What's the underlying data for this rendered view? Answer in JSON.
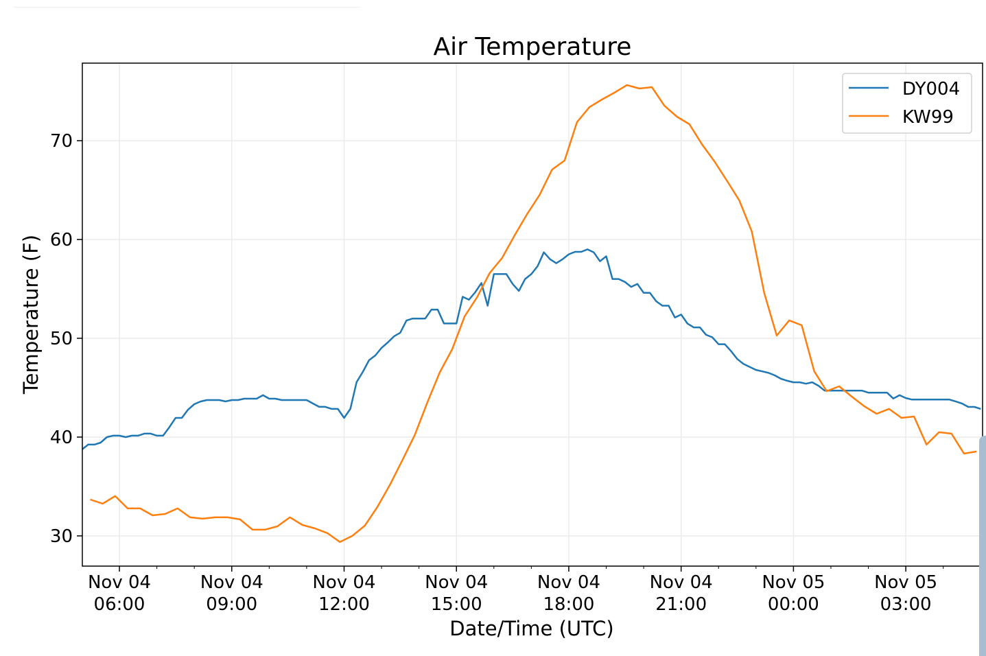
{
  "chart_data": {
    "type": "line",
    "title": "Air Temperature",
    "xlabel": "Date/Time (UTC)",
    "ylabel": "Temperature (F)",
    "x_units": "hours since Nov 04 00:00 UTC",
    "xlim": [
      5.01,
      29.05
    ],
    "ylim": [
      26.94,
      77.85
    ],
    "grid": true,
    "legend_position": "top-right",
    "y_ticks": [
      30,
      40,
      50,
      60,
      70
    ],
    "x_ticks": [
      {
        "value": 6,
        "line1": "Nov 04",
        "line2": "06:00"
      },
      {
        "value": 9,
        "line1": "Nov 04",
        "line2": "09:00"
      },
      {
        "value": 12,
        "line1": "Nov 04",
        "line2": "12:00"
      },
      {
        "value": 15,
        "line1": "Nov 04",
        "line2": "15:00"
      },
      {
        "value": 18,
        "line1": "Nov 04",
        "line2": "18:00"
      },
      {
        "value": 21,
        "line1": "Nov 04",
        "line2": "21:00"
      },
      {
        "value": 24,
        "line1": "Nov 05",
        "line2": "00:00"
      },
      {
        "value": 27,
        "line1": "Nov 05",
        "line2": "03:00"
      }
    ],
    "series": [
      {
        "name": "DY004",
        "color": "#1f77b4",
        "start_hour": 5.0,
        "step_minutes": 10,
        "values": [
          38.75,
          39.24,
          39.24,
          39.44,
          40.0,
          40.14,
          40.14,
          40.0,
          40.14,
          40.14,
          40.35,
          40.35,
          40.14,
          40.14,
          41.0,
          41.94,
          41.94,
          42.78,
          43.33,
          43.6,
          43.75,
          43.75,
          43.75,
          43.61,
          43.75,
          43.75,
          43.89,
          43.89,
          43.89,
          44.24,
          43.89,
          43.89,
          43.75,
          43.75,
          43.75,
          43.75,
          43.75,
          43.4,
          43.06,
          43.06,
          42.85,
          42.85,
          41.94,
          42.85,
          45.56,
          46.6,
          47.78,
          48.26,
          49.03,
          49.58,
          50.2,
          50.56,
          51.8,
          52.0,
          52.0,
          52.0,
          52.9,
          52.9,
          51.5,
          51.5,
          51.5,
          54.2,
          53.9,
          54.65,
          55.6,
          53.3,
          56.5,
          56.5,
          56.5,
          55.5,
          54.8,
          56.0,
          56.5,
          57.3,
          58.7,
          58.0,
          57.6,
          58.0,
          58.5,
          58.75,
          58.75,
          59.0,
          58.7,
          57.8,
          58.3,
          56.0,
          56.0,
          55.7,
          55.2,
          55.5,
          54.6,
          54.6,
          53.75,
          53.3,
          53.3,
          52.1,
          52.4,
          51.5,
          51.1,
          51.1,
          50.35,
          50.1,
          49.4,
          49.4,
          48.7,
          47.9,
          47.4,
          47.1,
          46.8,
          46.65,
          46.5,
          46.25,
          45.9,
          45.7,
          45.55,
          45.55,
          45.4,
          45.55,
          45.2,
          44.7,
          44.7,
          44.7,
          44.7,
          44.7,
          44.7,
          44.7,
          44.5,
          44.5,
          44.5,
          44.5,
          43.9,
          44.24,
          43.95,
          43.8,
          43.8,
          43.8,
          43.8,
          43.8,
          43.8,
          43.8,
          43.6,
          43.4,
          43.05,
          43.05,
          42.85
        ]
      },
      {
        "name": "KW99",
        "color": "#ff7f0e",
        "start_hour": 5.22,
        "step_minutes": 20,
        "values": [
          33.68,
          33.26,
          34.03,
          32.78,
          32.78,
          32.08,
          32.22,
          32.78,
          31.88,
          31.74,
          31.88,
          31.88,
          31.67,
          30.63,
          30.63,
          30.97,
          31.88,
          31.11,
          30.76,
          30.28,
          29.38,
          30.0,
          31.04,
          32.92,
          35.14,
          37.64,
          40.21,
          43.47,
          46.53,
          48.89,
          52.22,
          54.17,
          56.6,
          58.13,
          60.42,
          62.57,
          64.51,
          67.08,
          67.99,
          71.88,
          73.4,
          74.17,
          74.86,
          75.63,
          75.28,
          75.42,
          73.54,
          72.43,
          71.67,
          69.65,
          67.92,
          65.97,
          63.96,
          60.83,
          54.58,
          50.28,
          51.81,
          51.32,
          46.67,
          44.65,
          45.14,
          44.1,
          43.13,
          42.36,
          42.85,
          41.94,
          42.08,
          39.24,
          40.49,
          40.35,
          38.33,
          38.54
        ]
      }
    ]
  }
}
